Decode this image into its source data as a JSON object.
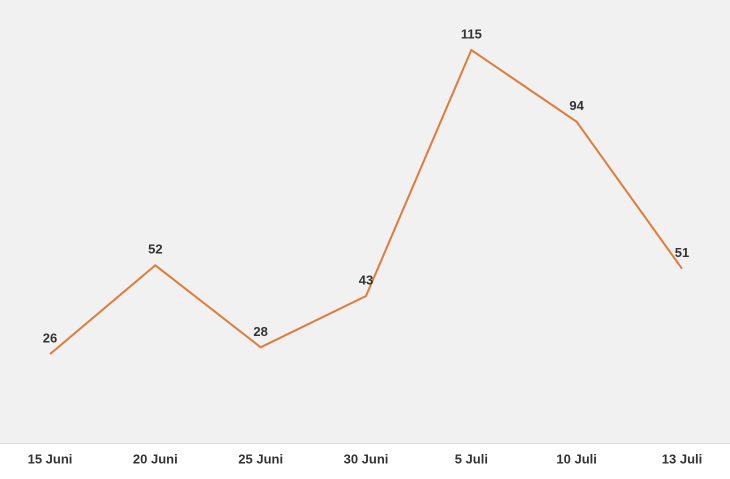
{
  "chart_data": {
    "type": "line",
    "categories": [
      "15 Juni",
      "20 Juni",
      "25 Juni",
      "30 Juni",
      "5 Juli",
      "10 Juli",
      "13 Juli"
    ],
    "values": [
      26,
      52,
      28,
      43,
      115,
      94,
      51
    ],
    "color": "#e07b39"
  }
}
